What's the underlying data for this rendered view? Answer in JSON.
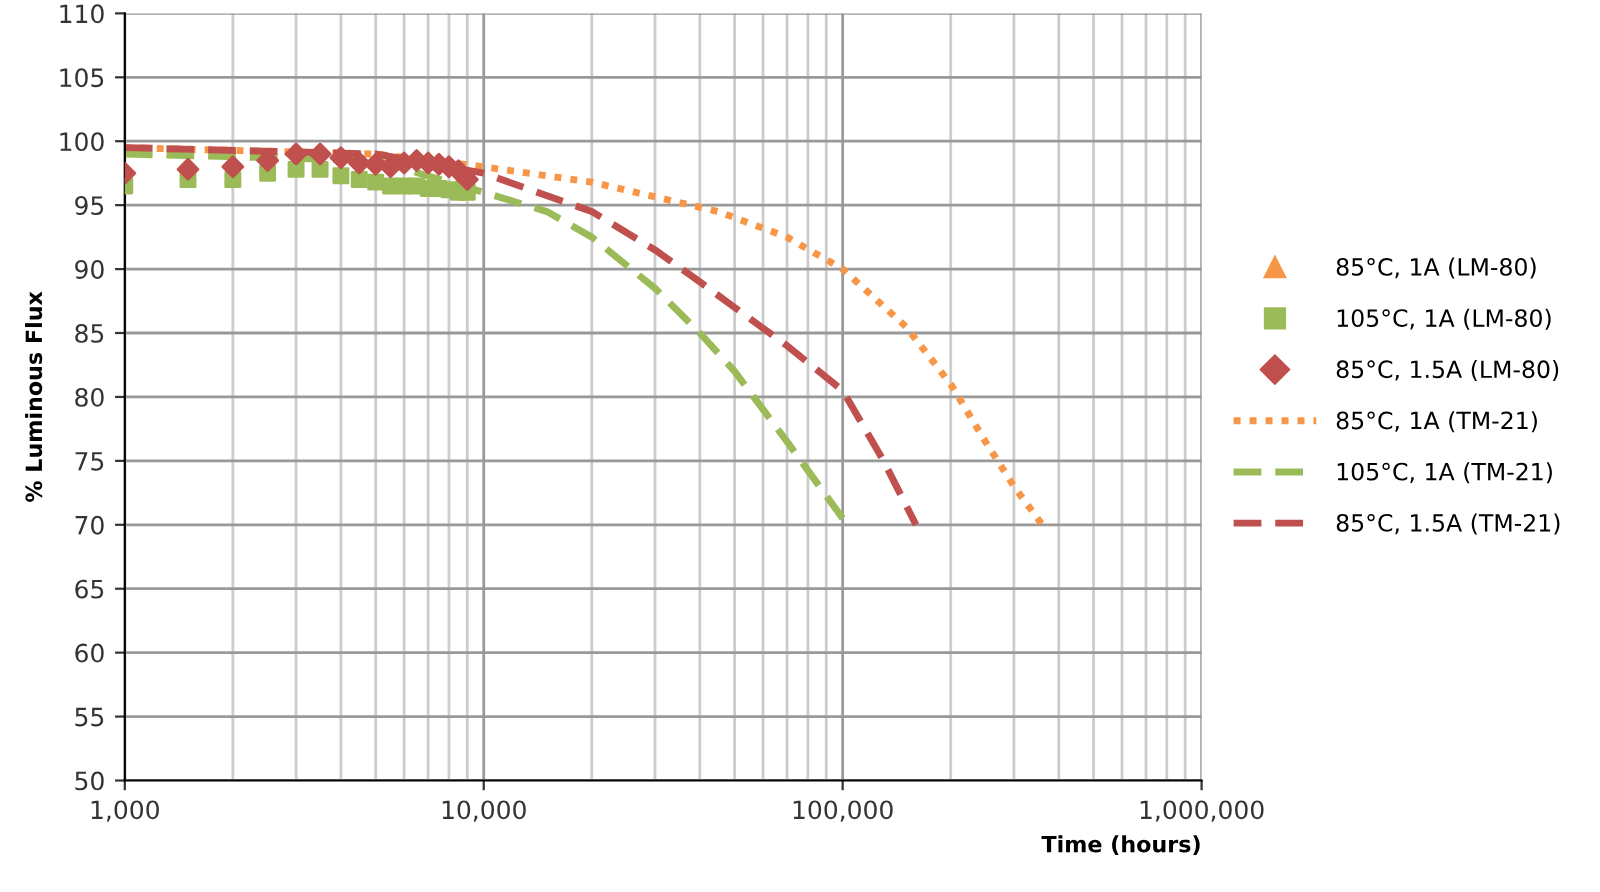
{
  "chart_data": {
    "type": "scatter",
    "xlabel": "Time (hours)",
    "ylabel": "% Luminous Flux",
    "log": "x",
    "grid": true,
    "legend": "right",
    "xlim": [
      1000,
      1000000
    ],
    "xticks": [
      {
        "value": 1000,
        "label": "1,000"
      },
      {
        "value": 10000,
        "label": "10,000"
      },
      {
        "value": 100000,
        "label": "100,000"
      },
      {
        "value": 1000000,
        "label": "1,000,000"
      }
    ],
    "ylim": [
      50,
      110
    ],
    "yticks": [
      50,
      55,
      60,
      65,
      70,
      75,
      80,
      85,
      90,
      95,
      100,
      105,
      110
    ],
    "series": [
      {
        "name": "85°C, 1A (LM-80)",
        "marker": "triangle",
        "color": "#f79646"
      },
      {
        "name": "105°C, 1A (LM-80)",
        "marker": "square",
        "color": "#9bbb59",
        "x": [
          1000,
          1500,
          2000,
          2500,
          3000,
          3500,
          4000,
          4500,
          5000,
          5500,
          6000,
          6500,
          7000,
          7500,
          8000,
          8500,
          9000
        ],
        "values": [
          96.5,
          97,
          97,
          97.5,
          97.8,
          97.8,
          97.3,
          97,
          96.8,
          96.5,
          96.5,
          96.5,
          96.3,
          96.3,
          96.2,
          96,
          96
        ]
      },
      {
        "name": "85°C, 1.5A (LM-80)",
        "marker": "diamond",
        "color": "#c0504d",
        "x": [
          1000,
          1500,
          2000,
          2500,
          3000,
          3500,
          4000,
          4500,
          5000,
          5500,
          6000,
          6500,
          7000,
          7500,
          8000,
          8500,
          9000
        ],
        "values": [
          97.5,
          97.8,
          98,
          98.5,
          99,
          99,
          98.7,
          98.3,
          98.2,
          98,
          98.3,
          98.5,
          98.3,
          98.2,
          98,
          97.7,
          97
        ]
      },
      {
        "name": "85°C, 1A (TM-21)",
        "type": "line",
        "line_style": "dotted",
        "marker": "none",
        "color": "#f79646",
        "x": [
          1000,
          5000,
          10000,
          20000,
          45000,
          70000,
          100000,
          150000,
          200000,
          250000,
          300000,
          360000
        ],
        "values": [
          99.5,
          99,
          98,
          96.8,
          94.5,
          92.5,
          90,
          85.5,
          81,
          76.5,
          73,
          70
        ]
      },
      {
        "name": "105°C, 1A (TM-21)",
        "type": "line",
        "line_style": "dashed",
        "marker": "none",
        "color": "#9bbb59",
        "x": [
          1000,
          5000,
          10000,
          15000,
          20000,
          30000,
          40000,
          50000,
          70000,
          100000
        ],
        "values": [
          99,
          98.5,
          96,
          94.5,
          92.5,
          88.5,
          85,
          82,
          76.5,
          70.5
        ]
      },
      {
        "name": "85°C, 1.5A (TM-21)",
        "type": "line",
        "line_style": "dashed",
        "marker": "none",
        "color": "#c0504d",
        "x": [
          1000,
          5000,
          10000,
          20000,
          30000,
          40000,
          50000,
          70000,
          100000,
          130000,
          160000
        ],
        "values": [
          99.5,
          99,
          97.5,
          94.5,
          91.5,
          89,
          87,
          84,
          80.5,
          75,
          70
        ]
      }
    ]
  }
}
